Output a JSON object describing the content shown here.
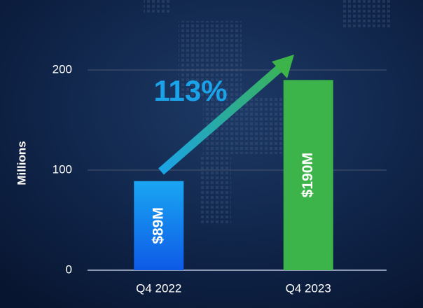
{
  "chart_data": {
    "type": "bar",
    "y_label": "Millions",
    "categories": [
      "Q4 2022",
      "Q4 2023"
    ],
    "values": [
      89,
      190
    ],
    "value_labels": [
      "$89M",
      "$190M"
    ],
    "colors": [
      "#1a8ff0",
      "#3cb44a"
    ],
    "ylim": [
      0,
      200
    ],
    "yticks": [
      0,
      100,
      200
    ],
    "grid": true,
    "annotations": [
      "113%"
    ]
  }
}
